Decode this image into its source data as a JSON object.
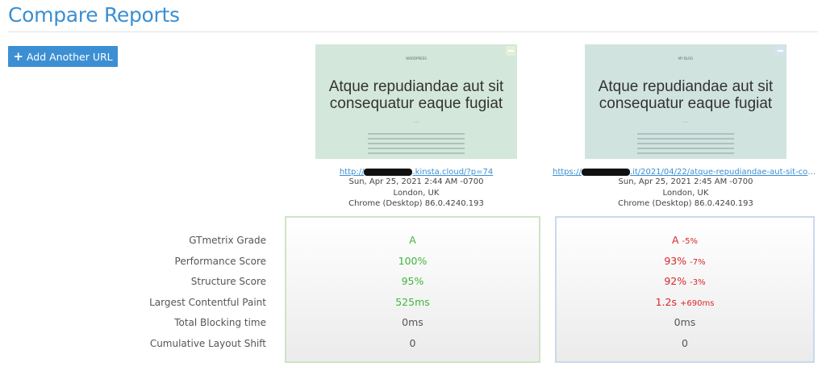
{
  "page": {
    "title": "Compare Reports",
    "add_button": "Add Another URL",
    "add_icon": "plus-icon"
  },
  "colors": {
    "accent": "#3b8fd2",
    "good": "#3fb53f",
    "bad": "#d9262a",
    "report1_border": "#cfe4c6",
    "report2_border": "#c9d9ec"
  },
  "metric_labels": [
    "GTmetrix Grade",
    "Performance Score",
    "Structure Score",
    "Largest Contentful Paint",
    "Total Blocking time",
    "Cumulative Layout Shift"
  ],
  "reports": [
    {
      "thumb": {
        "site": "WORDPRESS",
        "heading": "Atque repudiandae aut sit consequatur eaque fugiat"
      },
      "url_prefix": "http://",
      "url_suffix": ".kinsta.cloud/?p=74",
      "date": "Sun, Apr 25, 2021 2:44 AM -0700",
      "location": "London, UK",
      "browser": "Chrome (Desktop) 86.0.4240.193",
      "values": [
        {
          "v": "A",
          "d": "",
          "s": "g"
        },
        {
          "v": "100%",
          "d": "",
          "s": "g"
        },
        {
          "v": "95%",
          "d": "",
          "s": "g"
        },
        {
          "v": "525ms",
          "d": "",
          "s": "g"
        },
        {
          "v": "0ms",
          "d": "",
          "s": "n"
        },
        {
          "v": "0",
          "d": "",
          "s": "n"
        }
      ]
    },
    {
      "thumb": {
        "site": "MY BLOG",
        "heading": "Atque repudiandae aut sit consequatur eaque fugiat"
      },
      "url_prefix": "https://",
      "url_suffix": ".it/2021/04/22/atque-repudiandae-aut-sit-consequat...",
      "date": "Sun, Apr 25, 2021 2:45 AM -0700",
      "location": "London, UK",
      "browser": "Chrome (Desktop) 86.0.4240.193",
      "values": [
        {
          "v": "A",
          "d": "-5%",
          "s": "r"
        },
        {
          "v": "93%",
          "d": "-7%",
          "s": "r"
        },
        {
          "v": "92%",
          "d": "-3%",
          "s": "r"
        },
        {
          "v": "1.2s",
          "d": "+690ms",
          "s": "r"
        },
        {
          "v": "0ms",
          "d": "",
          "s": "n"
        },
        {
          "v": "0",
          "d": "",
          "s": "n"
        }
      ]
    }
  ]
}
